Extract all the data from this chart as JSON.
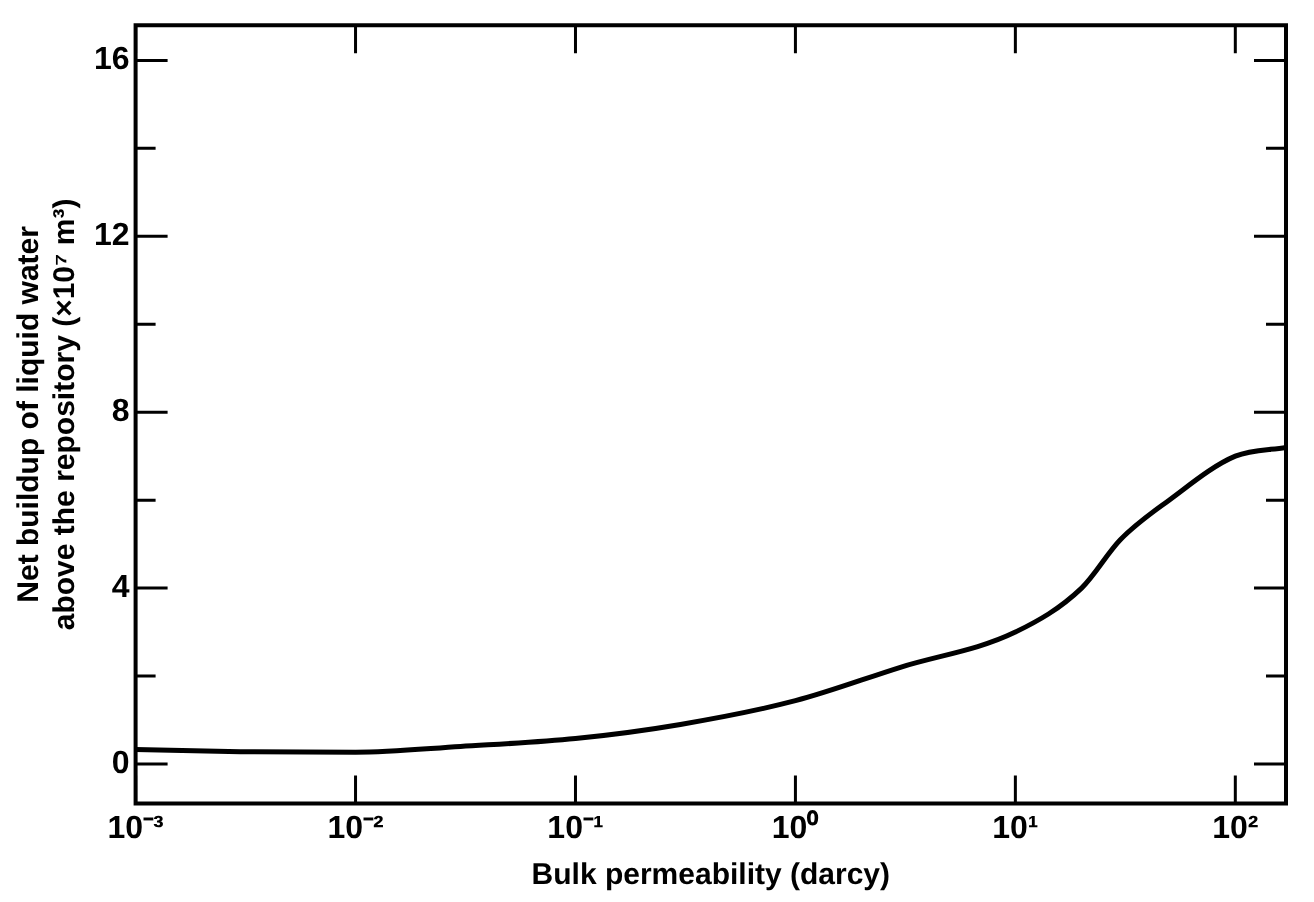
{
  "chart_data": {
    "type": "line",
    "xlabel": "Bulk permeability (darcy)",
    "ylabel": "Net buildup of liquid water above the repository (×10⁷ m³)",
    "log": "x",
    "grid": false,
    "legend": false,
    "marker": "none",
    "line_style": "solid",
    "xlim": [
      0.001,
      170
    ],
    "xticks": [
      {
        "value": 0.001,
        "label": "10⁻³"
      },
      {
        "value": 0.01,
        "label": "10⁻²"
      },
      {
        "value": 0.1,
        "label": "10⁻¹"
      },
      {
        "value": 1,
        "label": "10⁰"
      },
      {
        "value": 10,
        "label": "10¹"
      },
      {
        "value": 100,
        "label": "10²"
      }
    ],
    "ylim": [
      -0.9,
      16.8
    ],
    "yticks": [
      0,
      {
        "value": 2,
        "label": null
      },
      4,
      {
        "value": 6,
        "label": null
      },
      8,
      {
        "value": 10,
        "label": null
      },
      12,
      {
        "value": 14,
        "label": null
      },
      16
    ],
    "series": [
      {
        "color": "#000000",
        "x": [
          0.001,
          0.003,
          0.01,
          0.03,
          0.1,
          0.3,
          1,
          3,
          10,
          20,
          30,
          50,
          100,
          170
        ],
        "values": [
          0.33,
          0.28,
          0.27,
          0.4,
          0.58,
          0.9,
          1.44,
          2.2,
          3.0,
          4.0,
          5.1,
          6.0,
          7.0,
          7.2
        ]
      }
    ]
  }
}
